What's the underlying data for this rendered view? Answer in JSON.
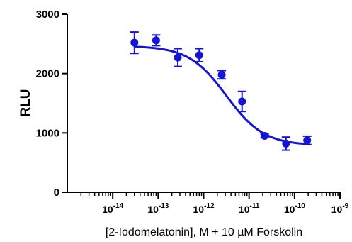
{
  "chart_data": {
    "type": "scatter",
    "title": "",
    "xlabel": "[2-Iodomelatonin], M + 10 µM Forskolin",
    "ylabel": "RLU",
    "x_scale": "log",
    "xlim": [
      1e-15,
      1e-09
    ],
    "ylim": [
      0,
      3000
    ],
    "y_ticks": [
      "0",
      "1000",
      "2000",
      "3000"
    ],
    "x_ticks": [
      {
        "base": "10",
        "exp": "-14"
      },
      {
        "base": "10",
        "exp": "-13"
      },
      {
        "base": "10",
        "exp": "-12"
      },
      {
        "base": "10",
        "exp": "-11"
      },
      {
        "base": "10",
        "exp": "-10"
      },
      {
        "base": "10",
        "exp": "-9"
      }
    ],
    "grid": false,
    "color": "#1414d2",
    "series": [
      {
        "x": [
          3e-14,
          9e-14,
          2.7e-13,
          8e-13,
          2.5e-12,
          7e-12,
          2.2e-11,
          6.5e-11,
          1.9e-10
        ],
        "y": [
          2520,
          2560,
          2270,
          2310,
          1980,
          1530,
          950,
          820,
          875
        ],
        "yerr": [
          180,
          90,
          150,
          110,
          70,
          170,
          30,
          110,
          70
        ]
      }
    ],
    "fit": {
      "type": "sigmoid",
      "top": 2465,
      "bottom": 790,
      "log_ic50": -11.5,
      "hill_slope": -1.05
    }
  }
}
